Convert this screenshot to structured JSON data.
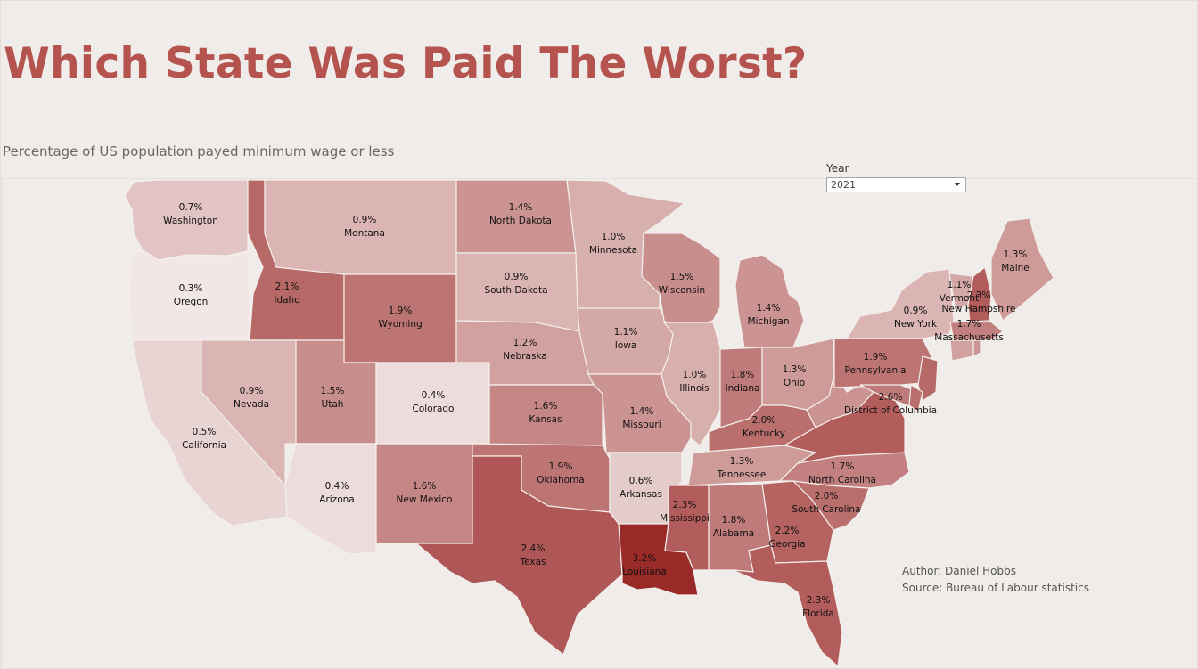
{
  "header": {
    "title": "Which State Was Paid The Worst?",
    "subtitle": "Percentage of US population payed minimum wage or less"
  },
  "filter": {
    "label": "Year",
    "selected": "2021"
  },
  "credits": {
    "author": "Author: Daniel Hobbs",
    "source": "Source: Bureau of Labour statistics"
  },
  "colors": {
    "low": "#f1e7e6",
    "high": "#9a2a28",
    "title": "#b5534f"
  },
  "chart_data": {
    "type": "choropleth",
    "states": [
      {
        "name": "Washington",
        "value": 0.7,
        "label": "0.7%"
      },
      {
        "name": "Oregon",
        "value": 0.3,
        "label": "0.3%"
      },
      {
        "name": "California",
        "value": 0.5,
        "label": "0.5%"
      },
      {
        "name": "Idaho",
        "value": 2.1,
        "label": "2.1%"
      },
      {
        "name": "Nevada",
        "value": 0.9,
        "label": "0.9%"
      },
      {
        "name": "Montana",
        "value": 0.9,
        "label": "0.9%"
      },
      {
        "name": "Wyoming",
        "value": 1.9,
        "label": "1.9%"
      },
      {
        "name": "Utah",
        "value": 1.5,
        "label": "1.5%"
      },
      {
        "name": "Arizona",
        "value": 0.4,
        "label": "0.4%"
      },
      {
        "name": "Colorado",
        "value": 0.4,
        "label": "0.4%"
      },
      {
        "name": "New Mexico",
        "value": 1.6,
        "label": "1.6%"
      },
      {
        "name": "North Dakota",
        "value": 1.4,
        "label": "1.4%"
      },
      {
        "name": "South Dakota",
        "value": 0.9,
        "label": "0.9%"
      },
      {
        "name": "Nebraska",
        "value": 1.2,
        "label": "1.2%"
      },
      {
        "name": "Kansas",
        "value": 1.6,
        "label": "1.6%"
      },
      {
        "name": "Oklahoma",
        "value": 1.9,
        "label": "1.9%"
      },
      {
        "name": "Texas",
        "value": 2.4,
        "label": "2.4%"
      },
      {
        "name": "Minnesota",
        "value": 1.0,
        "label": "1.0%"
      },
      {
        "name": "Iowa",
        "value": 1.1,
        "label": "1.1%"
      },
      {
        "name": "Missouri",
        "value": 1.4,
        "label": "1.4%"
      },
      {
        "name": "Arkansas",
        "value": 0.6,
        "label": "0.6%"
      },
      {
        "name": "Louisiana",
        "value": 3.2,
        "label": "3.2%"
      },
      {
        "name": "Wisconsin",
        "value": 1.5,
        "label": "1.5%"
      },
      {
        "name": "Illinois",
        "value": 1.0,
        "label": "1.0%"
      },
      {
        "name": "Michigan",
        "value": 1.4,
        "label": "1.4%"
      },
      {
        "name": "Indiana",
        "value": 1.8,
        "label": "1.8%"
      },
      {
        "name": "Ohio",
        "value": 1.3,
        "label": "1.3%"
      },
      {
        "name": "Kentucky",
        "value": 2.0,
        "label": "2.0%"
      },
      {
        "name": "Tennessee",
        "value": 1.3,
        "label": "1.3%"
      },
      {
        "name": "Mississippi",
        "value": 2.3,
        "label": "2.3%"
      },
      {
        "name": "Alabama",
        "value": 1.8,
        "label": "1.8%"
      },
      {
        "name": "Georgia",
        "value": 2.2,
        "label": "2.2%"
      },
      {
        "name": "Florida",
        "value": 2.3,
        "label": "2.3%"
      },
      {
        "name": "South Carolina",
        "value": 2.0,
        "label": "2.0%"
      },
      {
        "name": "North Carolina",
        "value": 1.7,
        "label": "1.7%"
      },
      {
        "name": "Pennsylvania",
        "value": 1.9,
        "label": "1.9%"
      },
      {
        "name": "New York",
        "value": 0.9,
        "label": "0.9%"
      },
      {
        "name": "District of Columbia",
        "value": 2.6,
        "label": "2.6%"
      },
      {
        "name": "Vermont",
        "value": 1.1,
        "label": "1.1%"
      },
      {
        "name": "New Hampshire",
        "value": 2.3,
        "label": "2.3%"
      },
      {
        "name": "Massachusetts",
        "value": 1.7,
        "label": "1.7%"
      },
      {
        "name": "Maine",
        "value": 1.3,
        "label": "1.3%"
      }
    ]
  }
}
